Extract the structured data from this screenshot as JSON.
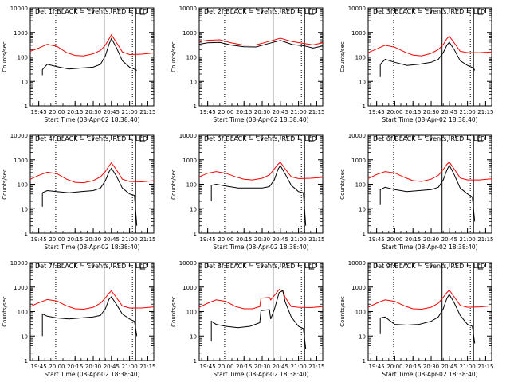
{
  "figure": {
    "xlabel": "Start Time (08-Apr-02 18:38:40)",
    "ylabel": "Counts/sec",
    "colors": {
      "events": "#000000",
      "lld": "#ff0000",
      "axes": "#000000",
      "background": "#ffffff"
    }
  },
  "chart_data": [
    {
      "type": "line",
      "title": "Det 1f BLACK = Events, RED = LLD",
      "xlabel": "Start Time (08-Apr-02 18:38:40)",
      "ylabel": "Counts/sec",
      "y_scale": "log",
      "ylim": [
        1,
        10000
      ],
      "yticks": [
        1,
        10,
        100,
        1000,
        10000
      ],
      "xlim": [
        "19:38",
        "21:20"
      ],
      "xticks": [
        "19:45",
        "20:00",
        "20:15",
        "20:30",
        "20:45",
        "21:00",
        "21:15"
      ],
      "markers": [
        "19:59",
        "20:39",
        "21:05"
      ],
      "series": [
        {
          "name": "LLD",
          "color": "#ff0000",
          "x": [
            "19:38",
            "19:45",
            "19:52",
            "20:00",
            "20:08",
            "20:15",
            "20:22",
            "20:30",
            "20:36",
            "20:40",
            "20:43",
            "20:45",
            "20:49",
            "20:54",
            "21:00",
            "21:10",
            "21:20"
          ],
          "values": [
            170,
            230,
            330,
            270,
            150,
            115,
            110,
            135,
            185,
            300,
            540,
            800,
            400,
            160,
            125,
            130,
            145
          ]
        },
        {
          "name": "Events",
          "color": "#000000",
          "x": [
            "19:48",
            "19:48",
            "19:52",
            "20:00",
            "20:10",
            "20:20",
            "20:30",
            "20:36",
            "20:40",
            "20:43",
            "20:45",
            "20:49",
            "20:54",
            "21:00",
            "21:05",
            "21:06"
          ],
          "values": [
            18,
            30,
            50,
            40,
            32,
            35,
            38,
            50,
            110,
            330,
            560,
            250,
            70,
            38,
            30,
            28
          ]
        }
      ]
    },
    {
      "type": "line",
      "title": "Det 2f BLACK = Events, RED = LLD",
      "xlabel": "Start Time (08-Apr-02 18:38:40)",
      "ylabel": "Counts/sec",
      "y_scale": "log",
      "ylim": [
        1,
        10000
      ],
      "yticks": [
        1,
        10,
        100,
        1000,
        10000
      ],
      "xlim": [
        "19:38",
        "21:20"
      ],
      "xticks": [
        "19:45",
        "20:00",
        "20:15",
        "20:30",
        "20:45",
        "21:00",
        "21:15"
      ],
      "markers": [
        "19:59",
        "20:39",
        "21:05"
      ],
      "series": [
        {
          "name": "LLD",
          "color": "#ff0000",
          "x": [
            "19:38",
            "19:45",
            "19:55",
            "20:05",
            "20:15",
            "20:25",
            "20:35",
            "20:45",
            "20:55",
            "21:05",
            "21:12",
            "21:20"
          ],
          "values": [
            420,
            480,
            500,
            370,
            300,
            310,
            420,
            580,
            420,
            350,
            310,
            380
          ]
        },
        {
          "name": "Events",
          "color": "#000000",
          "x": [
            "19:38",
            "19:45",
            "19:55",
            "20:05",
            "20:15",
            "20:25",
            "20:35",
            "20:45",
            "20:55",
            "21:05",
            "21:12",
            "21:20"
          ],
          "values": [
            330,
            380,
            390,
            300,
            260,
            255,
            350,
            470,
            320,
            280,
            230,
            280
          ]
        }
      ]
    },
    {
      "type": "line",
      "title": "Det 3f BLACK = Events, RED = LLD",
      "xlabel": "Start Time (08-Apr-02 18:38:40)",
      "ylabel": "Counts/sec",
      "y_scale": "log",
      "ylim": [
        1,
        10000
      ],
      "yticks": [
        1,
        10,
        100,
        1000,
        10000
      ],
      "xlim": [
        "19:38",
        "21:20"
      ],
      "xticks": [
        "19:45",
        "20:00",
        "20:15",
        "20:30",
        "20:45",
        "21:00",
        "21:15"
      ],
      "markers": [
        "19:59",
        "20:39",
        "21:05"
      ],
      "series": [
        {
          "name": "LLD",
          "color": "#ff0000",
          "x": [
            "19:38",
            "19:45",
            "19:52",
            "20:00",
            "20:08",
            "20:15",
            "20:22",
            "20:30",
            "20:36",
            "20:40",
            "20:43",
            "20:45",
            "20:49",
            "20:54",
            "21:00",
            "21:10",
            "21:20"
          ],
          "values": [
            150,
            210,
            300,
            250,
            160,
            120,
            110,
            140,
            200,
            320,
            560,
            700,
            380,
            170,
            150,
            150,
            160
          ]
        },
        {
          "name": "Events",
          "color": "#000000",
          "x": [
            "19:48",
            "19:48",
            "19:52",
            "20:00",
            "20:10",
            "20:20",
            "20:30",
            "20:36",
            "20:40",
            "20:43",
            "20:45",
            "20:49",
            "20:54",
            "21:00",
            "21:05",
            "21:06"
          ],
          "values": [
            15,
            50,
            80,
            60,
            45,
            50,
            60,
            80,
            150,
            300,
            400,
            200,
            70,
            45,
            35,
            28
          ]
        }
      ]
    },
    {
      "type": "line",
      "title": "Det 4f BLACK = Events, RED = LLD",
      "xlabel": "Start Time (08-Apr-02 18:38:40)",
      "ylabel": "Counts/sec",
      "y_scale": "log",
      "ylim": [
        1,
        10000
      ],
      "yticks": [
        1,
        10,
        100,
        1000,
        10000
      ],
      "xlim": [
        "19:38",
        "21:20"
      ],
      "xticks": [
        "19:45",
        "20:00",
        "20:15",
        "20:30",
        "20:45",
        "21:00",
        "21:15"
      ],
      "markers": [
        "19:59",
        "20:39",
        "21:05"
      ],
      "series": [
        {
          "name": "LLD",
          "color": "#ff0000",
          "x": [
            "19:38",
            "19:45",
            "19:52",
            "20:00",
            "20:08",
            "20:15",
            "20:22",
            "20:30",
            "20:36",
            "20:40",
            "20:43",
            "20:45",
            "20:49",
            "20:54",
            "21:00",
            "21:10",
            "21:20"
          ],
          "values": [
            160,
            230,
            310,
            270,
            160,
            120,
            115,
            140,
            200,
            330,
            560,
            750,
            400,
            160,
            130,
            125,
            140
          ]
        },
        {
          "name": "Events",
          "color": "#000000",
          "x": [
            "19:48",
            "19:48",
            "19:52",
            "20:00",
            "20:10",
            "20:20",
            "20:30",
            "20:36",
            "20:40",
            "20:43",
            "20:45",
            "20:49",
            "20:54",
            "21:00",
            "21:04",
            "21:06"
          ],
          "values": [
            12,
            45,
            55,
            50,
            45,
            50,
            55,
            70,
            140,
            320,
            450,
            220,
            70,
            40,
            35,
            2
          ]
        }
      ]
    },
    {
      "type": "line",
      "title": "Det 5f BLACK = Events, RED = LLD",
      "xlabel": "Start Time (08-Apr-02 18:38:40)",
      "ylabel": "Counts/sec",
      "y_scale": "log",
      "ylim": [
        1,
        10000
      ],
      "yticks": [
        1,
        10,
        100,
        1000,
        10000
      ],
      "xlim": [
        "19:38",
        "21:20"
      ],
      "xticks": [
        "19:45",
        "20:00",
        "20:15",
        "20:30",
        "20:45",
        "21:00",
        "21:15"
      ],
      "markers": [
        "19:59",
        "20:39",
        "21:05"
      ],
      "series": [
        {
          "name": "LLD",
          "color": "#ff0000",
          "x": [
            "19:38",
            "19:45",
            "19:52",
            "20:00",
            "20:08",
            "20:15",
            "20:22",
            "20:30",
            "20:36",
            "20:40",
            "20:43",
            "20:45",
            "20:49",
            "20:54",
            "21:00",
            "21:10",
            "21:20"
          ],
          "values": [
            200,
            280,
            330,
            280,
            200,
            160,
            150,
            175,
            240,
            420,
            650,
            800,
            420,
            200,
            170,
            175,
            190
          ]
        },
        {
          "name": "Events",
          "color": "#000000",
          "x": [
            "19:48",
            "19:48",
            "19:52",
            "20:00",
            "20:10",
            "20:20",
            "20:30",
            "20:36",
            "20:40",
            "20:43",
            "20:45",
            "20:49",
            "20:54",
            "21:00",
            "21:04",
            "21:06"
          ],
          "values": [
            20,
            90,
            100,
            85,
            70,
            70,
            70,
            80,
            150,
            400,
            580,
            260,
            90,
            50,
            45,
            2
          ]
        }
      ]
    },
    {
      "type": "line",
      "title": "Det 6f BLACK = Events, RED = LLD",
      "xlabel": "Start Time (08-Apr-02 18:38:40)",
      "ylabel": "Counts/sec",
      "y_scale": "log",
      "ylim": [
        1,
        10000
      ],
      "yticks": [
        1,
        10,
        100,
        1000,
        10000
      ],
      "xlim": [
        "19:38",
        "21:20"
      ],
      "xticks": [
        "19:45",
        "20:00",
        "20:15",
        "20:30",
        "20:45",
        "21:00",
        "21:15"
      ],
      "markers": [
        "19:59",
        "20:39",
        "21:05"
      ],
      "series": [
        {
          "name": "LLD",
          "color": "#ff0000",
          "x": [
            "19:38",
            "19:45",
            "19:52",
            "20:00",
            "20:08",
            "20:15",
            "20:22",
            "20:30",
            "20:36",
            "20:40",
            "20:43",
            "20:45",
            "20:49",
            "20:54",
            "21:00",
            "21:10",
            "21:20"
          ],
          "values": [
            170,
            250,
            330,
            290,
            190,
            140,
            130,
            160,
            230,
            400,
            650,
            800,
            420,
            180,
            150,
            150,
            165
          ]
        },
        {
          "name": "Events",
          "color": "#000000",
          "x": [
            "19:48",
            "19:48",
            "19:52",
            "20:00",
            "20:10",
            "20:20",
            "20:30",
            "20:36",
            "20:40",
            "20:43",
            "20:45",
            "20:49",
            "20:54",
            "21:00",
            "21:04",
            "21:06"
          ],
          "values": [
            15,
            60,
            75,
            60,
            50,
            55,
            60,
            75,
            150,
            380,
            600,
            250,
            70,
            40,
            30,
            3
          ]
        }
      ]
    },
    {
      "type": "line",
      "title": "Det 7f BLACK = Events, RED = LLD",
      "xlabel": "Start Time (08-Apr-02 18:38:40)",
      "ylabel": "Counts/sec",
      "y_scale": "log",
      "ylim": [
        1,
        10000
      ],
      "yticks": [
        1,
        10,
        100,
        1000,
        10000
      ],
      "xlim": [
        "19:38",
        "21:20"
      ],
      "xticks": [
        "19:45",
        "20:00",
        "20:15",
        "20:30",
        "20:45",
        "21:00",
        "21:15"
      ],
      "markers": [
        "19:59",
        "20:39",
        "21:05"
      ],
      "series": [
        {
          "name": "LLD",
          "color": "#ff0000",
          "x": [
            "19:38",
            "19:45",
            "19:52",
            "20:00",
            "20:08",
            "20:15",
            "20:22",
            "20:30",
            "20:36",
            "20:40",
            "20:43",
            "20:45",
            "20:49",
            "20:54",
            "21:00",
            "21:10",
            "21:20"
          ],
          "values": [
            160,
            230,
            310,
            270,
            170,
            130,
            125,
            150,
            220,
            360,
            560,
            700,
            380,
            170,
            140,
            140,
            155
          ]
        },
        {
          "name": "Events",
          "color": "#000000",
          "x": [
            "19:48",
            "19:48",
            "19:52",
            "20:00",
            "20:10",
            "20:20",
            "20:30",
            "20:36",
            "20:40",
            "20:43",
            "20:45",
            "20:49",
            "20:54",
            "21:00",
            "21:04",
            "21:06"
          ],
          "values": [
            10,
            80,
            65,
            55,
            50,
            55,
            60,
            70,
            130,
            320,
            400,
            200,
            80,
            50,
            40,
            10
          ]
        }
      ]
    },
    {
      "type": "line",
      "title": "Det 8f BLACK = Events, RED = LLD",
      "xlabel": "Start Time (08-Apr-02 18:38:40)",
      "ylabel": "Counts/sec",
      "y_scale": "log",
      "ylim": [
        1,
        10000
      ],
      "yticks": [
        1,
        10,
        100,
        1000,
        10000
      ],
      "xlim": [
        "19:38",
        "21:20"
      ],
      "xticks": [
        "19:45",
        "20:00",
        "20:15",
        "20:30",
        "20:45",
        "21:00",
        "21:15"
      ],
      "markers": [
        "19:59",
        "20:39",
        "21:05"
      ],
      "series": [
        {
          "name": "LLD",
          "color": "#ff0000",
          "x": [
            "19:38",
            "19:45",
            "19:52",
            "20:00",
            "20:08",
            "20:15",
            "20:22",
            "20:28",
            "20:29",
            "20:36",
            "20:37",
            "20:40",
            "20:44",
            "20:47",
            "20:49",
            "20:54",
            "21:00",
            "21:10",
            "21:20"
          ],
          "values": [
            150,
            220,
            300,
            260,
            160,
            130,
            130,
            160,
            350,
            380,
            300,
            450,
            800,
            700,
            380,
            160,
            150,
            145,
            160
          ]
        },
        {
          "name": "Events",
          "color": "#000000",
          "x": [
            "19:48",
            "19:48",
            "19:52",
            "20:00",
            "20:10",
            "20:20",
            "20:28",
            "20:29",
            "20:36",
            "20:37",
            "20:40",
            "20:44",
            "20:47",
            "20:49",
            "20:54",
            "21:00",
            "21:04",
            "21:06"
          ],
          "values": [
            6,
            40,
            30,
            25,
            22,
            25,
            35,
            110,
            120,
            50,
            120,
            600,
            700,
            250,
            60,
            25,
            20,
            3
          ]
        }
      ]
    },
    {
      "type": "line",
      "title": "Det 9f BLACK = Events, RED = LLD",
      "xlabel": "Start Time (08-Apr-02 18:38:40)",
      "ylabel": "Counts/sec",
      "y_scale": "log",
      "ylim": [
        1,
        10000
      ],
      "yticks": [
        1,
        10,
        100,
        1000,
        10000
      ],
      "xlim": [
        "19:38",
        "21:20"
      ],
      "xticks": [
        "19:45",
        "20:00",
        "20:15",
        "20:30",
        "20:45",
        "21:00",
        "21:15"
      ],
      "markers": [
        "19:59",
        "20:39",
        "21:05"
      ],
      "series": [
        {
          "name": "LLD",
          "color": "#ff0000",
          "x": [
            "19:38",
            "19:45",
            "19:52",
            "20:00",
            "20:08",
            "20:15",
            "20:22",
            "20:30",
            "20:36",
            "20:40",
            "20:43",
            "20:45",
            "20:49",
            "20:54",
            "21:00",
            "21:10",
            "21:20"
          ],
          "values": [
            150,
            220,
            300,
            260,
            170,
            130,
            125,
            150,
            220,
            380,
            600,
            750,
            400,
            180,
            150,
            155,
            170
          ]
        },
        {
          "name": "Events",
          "color": "#000000",
          "x": [
            "19:48",
            "19:48",
            "19:52",
            "20:00",
            "20:10",
            "20:20",
            "20:30",
            "20:36",
            "20:40",
            "20:43",
            "20:45",
            "20:49",
            "20:54",
            "21:00",
            "21:04",
            "21:06"
          ],
          "values": [
            12,
            55,
            60,
            30,
            28,
            30,
            40,
            60,
            130,
            350,
            500,
            230,
            70,
            30,
            25,
            5
          ]
        }
      ]
    }
  ]
}
